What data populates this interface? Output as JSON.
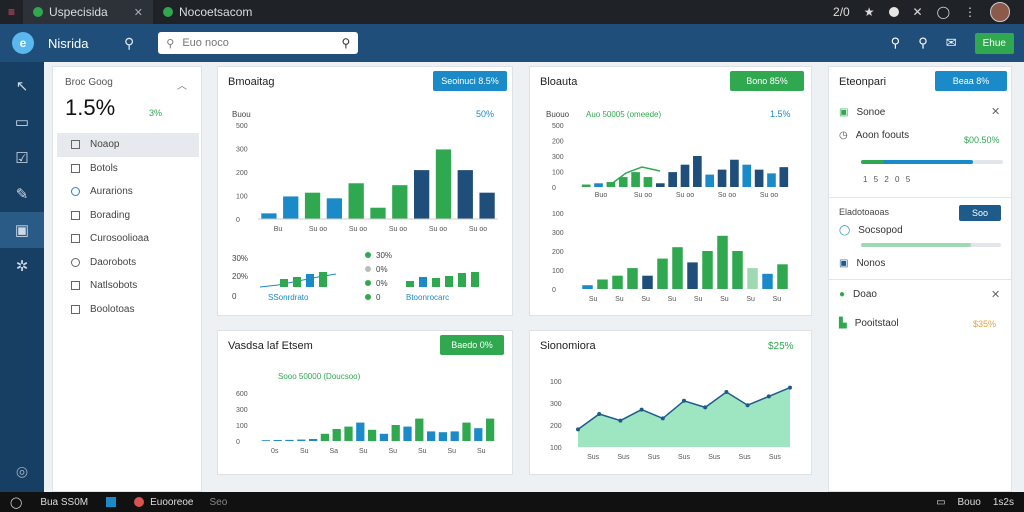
{
  "browser": {
    "tabs": [
      {
        "label": "Uspecisida",
        "active": true
      },
      {
        "label": "Nocoetsacom",
        "active": false
      }
    ],
    "right_counter": "2/0"
  },
  "header": {
    "brand": "Nisrida",
    "search_placeholder": "Euo noco",
    "action_button": "Ehue"
  },
  "nav": {
    "kpi_label": "Broc Goog",
    "kpi_value": "1.5%",
    "kpi_sub": "3%",
    "items": [
      {
        "label": "Noaop",
        "active": true
      },
      {
        "label": "Botols"
      },
      {
        "label": "Aurarions"
      },
      {
        "label": "Borading"
      },
      {
        "label": "Curosoolioaa"
      },
      {
        "label": "Daorobots"
      },
      {
        "label": "Natlsobots"
      },
      {
        "label": "Boolotoas"
      }
    ]
  },
  "cards": {
    "top_left": {
      "title": "Bmoaitag",
      "pill": "Seoinuci 8.5%",
      "top_right_label": "50%",
      "y_label": "Buou",
      "y_ticks": [
        "500",
        "300",
        "200",
        "100",
        "0"
      ],
      "x_ticks": [
        "Bu",
        "Su oo",
        "Su oo",
        "Su oo",
        "Su oo",
        "Su oo"
      ],
      "small_y": [
        "30%",
        "20%",
        "0"
      ],
      "legend": [
        "30%",
        "0%",
        "0%",
        "0"
      ],
      "small_x": [
        "SSonrdrato",
        "Btoonrocarc"
      ]
    },
    "top_right": {
      "title": "Bloauta",
      "pill": "Bono 85%",
      "top_right_label": "1.5%",
      "legend_text": "Buouo",
      "legend_series": "Auo 50005 (omeede)",
      "y_ticks": [
        "500",
        "200",
        "300",
        "100",
        "0"
      ],
      "x_ticks": [
        "Buo",
        "Su oo",
        "Su oo",
        "So oo",
        "Su oo"
      ],
      "y2_ticks": [
        "100",
        "300",
        "200",
        "100",
        "0"
      ],
      "x2_ticks": [
        "Su",
        "Su",
        "Su",
        "Su",
        "Su",
        "Su",
        "Su",
        "Su"
      ]
    },
    "bottom_left": {
      "title": "Vasdsa laf Etsem",
      "pill": "Baedo 0%",
      "legend": "Sooo 50000 (Doucsoo)",
      "y_ticks": [
        "600",
        "300",
        "100",
        "0"
      ],
      "x_ticks": [
        "0s",
        "Su",
        "Sa",
        "Su",
        "Su",
        "Su",
        "Su",
        "Su"
      ]
    },
    "bottom_right": {
      "title": "Sionomiora",
      "right_label": "$25%",
      "y_ticks": [
        "100",
        "300",
        "200",
        "100"
      ],
      "x_ticks": [
        "Sus",
        "Sus",
        "Sus",
        "Sus",
        "Sus",
        "Sus",
        "Sus"
      ]
    }
  },
  "right_panel": {
    "title": "Eteonpari",
    "pill": "Beaa 8%",
    "row1": "Sonoe",
    "row2": "Aoon foouts",
    "row2_value": "$00.50%",
    "row2_sub": "1 5 2 0 5",
    "section": "Eladotoaoas",
    "section_button": "Soo",
    "row3": "Socsopod",
    "row4": "Nonos",
    "row5": "Doao",
    "row6": "Pooitstaol",
    "row6_value": "$35%"
  },
  "taskbar": {
    "left_text": "Bua SS0M",
    "app1": "Euooreoe",
    "app1_sub": "Seo",
    "right1": "Bouo",
    "right2": "1s2s"
  },
  "chart_data": [
    {
      "type": "bar",
      "name": "top-left-main",
      "categories": [
        "1",
        "2",
        "3",
        "4",
        "5",
        "6",
        "7",
        "8",
        "9",
        "10",
        "11"
      ],
      "values": [
        30,
        120,
        140,
        110,
        190,
        60,
        180,
        260,
        370,
        260,
        140
      ],
      "ylim": [
        0,
        500
      ]
    },
    {
      "type": "bar",
      "name": "top-right-upper",
      "categories": [
        "1",
        "2",
        "3",
        "4",
        "5",
        "6",
        "7",
        "8",
        "9",
        "10",
        "11",
        "12",
        "13",
        "14",
        "15",
        "16",
        "17"
      ],
      "values": [
        20,
        30,
        40,
        80,
        120,
        80,
        30,
        120,
        180,
        250,
        100,
        140,
        220,
        180,
        140,
        110,
        160
      ],
      "ylim": [
        0,
        500
      ]
    },
    {
      "type": "bar",
      "name": "top-right-lower",
      "categories": [
        "1",
        "2",
        "3",
        "4",
        "5",
        "6",
        "7",
        "8",
        "9",
        "10",
        "11",
        "12",
        "13",
        "14"
      ],
      "values": [
        20,
        50,
        70,
        110,
        70,
        160,
        220,
        140,
        200,
        280,
        200,
        110,
        80,
        130
      ],
      "ylim": [
        0,
        400
      ]
    },
    {
      "type": "bar",
      "name": "bottom-left",
      "categories": [
        "1",
        "2",
        "3",
        "4",
        "5",
        "6",
        "7",
        "8",
        "9",
        "10",
        "11",
        "12",
        "13",
        "14",
        "15",
        "16",
        "17",
        "18",
        "19",
        "20"
      ],
      "values": [
        10,
        12,
        14,
        18,
        25,
        90,
        150,
        180,
        230,
        140,
        90,
        200,
        180,
        280,
        120,
        110,
        120,
        230,
        160,
        280
      ],
      "ylim": [
        0,
        600
      ]
    },
    {
      "type": "area",
      "name": "bottom-right",
      "x": [
        0,
        1,
        2,
        3,
        4,
        5,
        6,
        7,
        8,
        9,
        10
      ],
      "values": [
        80,
        150,
        120,
        170,
        130,
        210,
        180,
        250,
        190,
        230,
        270
      ],
      "ylim": [
        0,
        300
      ]
    }
  ]
}
